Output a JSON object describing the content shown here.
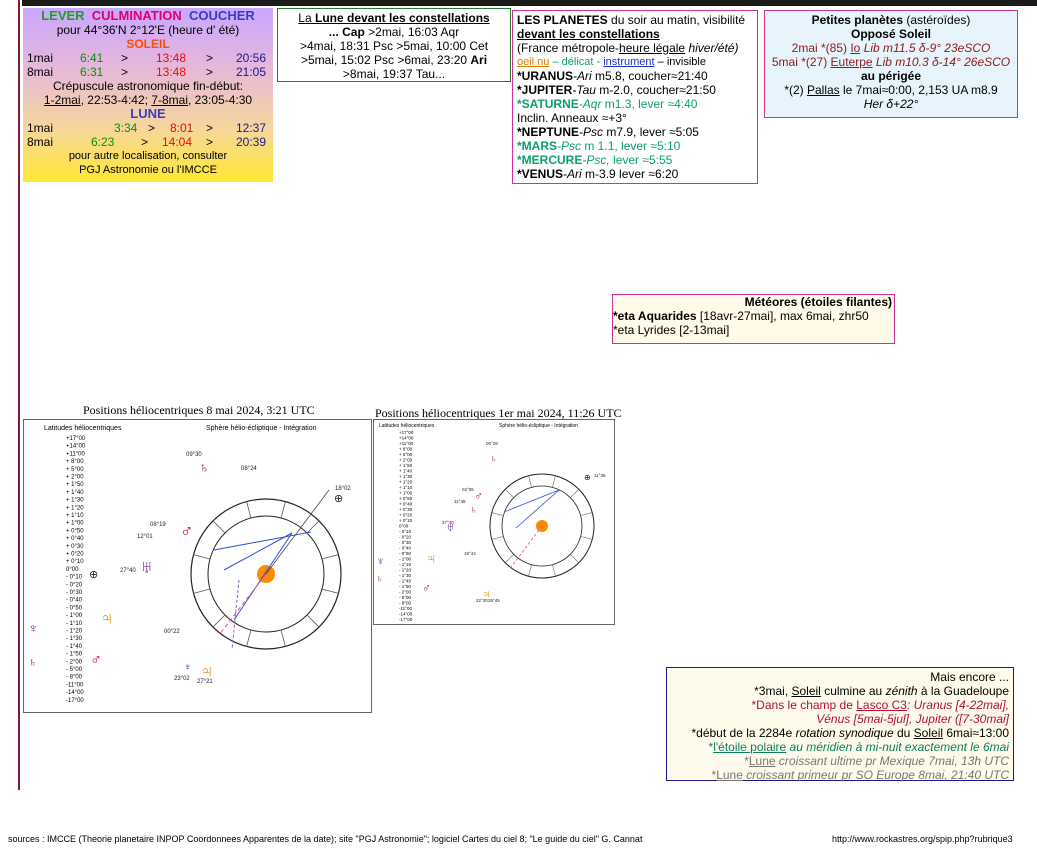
{
  "sun_moon": {
    "lever": "LEVER",
    "culmination": "CULMINATION",
    "coucher": "COUCHER",
    "location": "pour 44°36'N  2°12'E (heure d' été)",
    "soleil_title": "SOLEIL",
    "soleil_rows": [
      {
        "date": "1mai",
        "rise": "6:41",
        "sep1": ">",
        "culm": "13:48",
        "sep2": ">",
        "set": "20:56"
      },
      {
        "date": "8mai",
        "rise": "6:31",
        "sep1": ">",
        "culm": "13:48",
        "sep2": ">",
        "set": "21:05"
      }
    ],
    "crepuscule_label": "Crépuscule astronomique fin-début:",
    "crepuscule_a": "1-2mai",
    "crepuscule_a_val": ", 22:53-4:42; ",
    "crepuscule_b": "7-8mai",
    "crepuscule_b_val": ", 23:05-4:30",
    "lune_title": "LUNE",
    "lune_rows": [
      {
        "date": "1mai",
        "rise": "3:34",
        "sep1": ">",
        "culm": "8:01",
        "sep2": ">",
        "set": "12:37"
      },
      {
        "date": "8mai",
        "rise": "6:23",
        "sep1": ">",
        "culm": "14:04",
        "sep2": ">",
        "set": "20:39"
      }
    ],
    "note1": "pour autre localisation, consulter",
    "note2": "PGJ Astronomie ou l'IMCCE"
  },
  "lune_const": {
    "title_a": "La ",
    "title_b": "Lune devant les constellations",
    "lines": [
      "... Cap >2mai, 16:03 Aqr",
      ">4mai, 18:31 Psc >5mai, 10:00 Cet",
      ">5mai, 15:02 Psc >6mai, 23:20 Ari",
      ">8mai, 19:37 Tau..."
    ]
  },
  "planetes": {
    "title": "LES PLANETES",
    "title_rest": " du soir au matin, visibilité",
    "subtitle": "devant les constellations",
    "france": "(France métropole-",
    "heure": "heure légale",
    "hiver": " hiver/été)",
    "legend_oeil": "oeil nu",
    "legend_delicat": " – délicat - ",
    "legend_instrument": "instrument",
    "legend_invisible": " – invisible",
    "items": [
      {
        "name": "*URANUS",
        "const": "-Ari",
        "rest": " m5.8, coucher≈21:40",
        "cls": ""
      },
      {
        "name": "*JUPITER",
        "const": "-Tau",
        "rest": " m-2.0, coucher≈21:50",
        "cls": ""
      },
      {
        "name": "*SATURNE",
        "const": "-Aqr",
        "rest": " m1.3, lever ≈4:40",
        "cls": "teal"
      },
      {
        "name": "Inclin. Anneaux ≈+3°",
        "const": "",
        "rest": "",
        "cls": ""
      },
      {
        "name": "*NEPTUNE",
        "const": "-Psc",
        "rest": " m7.9, lever ≈5:05",
        "cls": ""
      },
      {
        "name": "*MARS",
        "const": "-Psc",
        "rest": " m 1.1, lever ≈5:10",
        "cls": "teal"
      },
      {
        "name": "*MERCURE",
        "const": "-Psc,",
        "rest": " lever ≈5:55",
        "cls": "teal"
      },
      {
        "name": "*VENUS",
        "const": "-Ari",
        "rest": " m-3.9 lever ≈6:20",
        "cls": ""
      }
    ]
  },
  "asteroides": {
    "title": "Petites planètes",
    "title_rest": " (astéroïdes)",
    "oppose": "Opposé Soleil",
    "line1_a": "2mai *(85) ",
    "line1_io": "Io",
    "line1_b": " Lib m11.5  δ-9° 23eSCO",
    "line2_a": "5mai *(27) ",
    "line2_eu": "Euterpe",
    "line2_b": " Lib m10.3 δ-14° 26eSCO",
    "perigee": "au périgée",
    "line3_a": "*(2) ",
    "line3_pa": "Pallas",
    "line3_b": " le 7mai≈0:00, 2,153 UA m8.9",
    "line4": "Her  δ+22°"
  },
  "meteores": {
    "title": "Météores (étoiles filantes)",
    "line1_a": "*eta Aquarides",
    "line1_b": " [18avr-27mai], max 6mai, zhr50",
    "line2": "*eta  Lyrides  [2-13mai]"
  },
  "chart1": {
    "title": "Positions héliocentriques 8 mai 2024, 3:21 UTC",
    "left_label": "Latitudes héliocentriques",
    "right_label": "Sphère hélio-écliptique - Intégration",
    "lat_ticks": [
      "+17°00",
      "+14°00",
      "+11°00",
      "+ 8°00",
      "+ 5°00",
      "+ 2°00",
      "+ 1°50",
      "+ 1°40",
      "+ 1°30",
      "+ 1°20",
      "+ 1°10",
      "+ 1°00",
      "+ 0°50",
      "+ 0°40",
      "+ 0°30",
      "+ 0°20",
      "+ 0°10",
      "0°00",
      "- 0°10",
      "- 0°20",
      "- 0°30",
      "- 0°40",
      "- 0°50",
      "- 1°00",
      "- 1°10",
      "- 1°20",
      "- 1°30",
      "- 1°40",
      "- 1°50",
      "- 2°00",
      "- 5°00",
      "- 8°00",
      "-11°00",
      "-14°00",
      "-17°00"
    ],
    "labels": [
      "09°30",
      "08°24",
      "18°02",
      "08°19",
      "12°01",
      "27°40",
      "00°22",
      "23°02",
      "27°21"
    ]
  },
  "chart2": {
    "title": "Positions héliocentriques 1er mai 2024, 11:26 UTC",
    "left_label": "Latitudes héliocentriques",
    "right_label": "Sphère hélio-écliptique - Intégration",
    "labels": [
      "00°28",
      "11°36",
      "02°05",
      "11°48",
      "27°40",
      "19°44",
      "22°30",
      "26°45"
    ]
  },
  "mais_encore": {
    "title": "Mais encore ...",
    "l1_a": "*3mai, ",
    "l1_soleil": "Soleil",
    "l1_b": " culmine au ",
    "l1_zenith": "zénith",
    "l1_c": " à la Guadeloupe",
    "l2_a": "*Dans le champ de ",
    "l2_lasco": "Lasco C3",
    "l2_b": ": Uranus [4-22mai],",
    "l3": "Vénus [5mai-5jul], Jupiter ([7-30mai]",
    "l4_a": "*début de la 2284e ",
    "l4_b": "rotation synodique",
    "l4_c": " du ",
    "l4_soleil": "Soleil",
    "l4_d": " 6mai≈13:00",
    "l5_a": "*",
    "l5_etoile": "l'étoile polaire",
    "l5_b": " au méridien à mi-nuit exactement le 6mai",
    "l6_a": "*",
    "l6_lune": "Lune",
    "l6_b": " croissant ultime pr Mexique 7mai, 13h UTC",
    "l7_a": "*",
    "l7_lune": "Lune",
    "l7_b": " croissant primeur pr SO Europe 8mai, 21:40 UTC"
  },
  "footer": {
    "sources": "sources : IMCCE (Theorie planetaire INPOP Coordonnees Apparentes de la date); site \"PGJ Astronomie\"; logiciel  Cartes du ciel 8; \"Le guide du ciel\" G. Cannat",
    "url": "http://www.rockastres.org/spip.php?rubrique3"
  },
  "colors": {
    "accent": "#cc3399",
    "sun": "#ff7a00",
    "moon": "#3a3ac8"
  }
}
